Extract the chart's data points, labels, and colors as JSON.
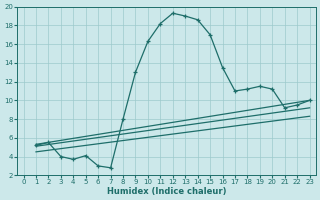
{
  "xlabel": "Humidex (Indice chaleur)",
  "background_color": "#cce8ea",
  "grid_color": "#9ecacc",
  "line_color": "#1e6e6a",
  "xlim": [
    -0.5,
    23.5
  ],
  "ylim": [
    2,
    20
  ],
  "xticks": [
    0,
    1,
    2,
    3,
    4,
    5,
    6,
    7,
    8,
    9,
    10,
    11,
    12,
    13,
    14,
    15,
    16,
    17,
    18,
    19,
    20,
    21,
    22,
    23
  ],
  "yticks": [
    2,
    4,
    6,
    8,
    10,
    12,
    14,
    16,
    18,
    20
  ],
  "line1_x": [
    1,
    2,
    3,
    4,
    5,
    6,
    7,
    8,
    9,
    10,
    11,
    12,
    13,
    14,
    15,
    16,
    17,
    18,
    19,
    20,
    21,
    22,
    23
  ],
  "line1_y": [
    5.2,
    5.5,
    4.0,
    3.7,
    4.1,
    3.0,
    2.8,
    8.0,
    13.0,
    16.3,
    18.2,
    19.3,
    19.0,
    18.6,
    17.0,
    13.5,
    11.0,
    11.2,
    11.5,
    11.2,
    9.2,
    9.5,
    10.0
  ],
  "line2_x": [
    1,
    23
  ],
  "line2_y": [
    5.3,
    10.0
  ],
  "line3_x": [
    1,
    23
  ],
  "line3_y": [
    5.1,
    9.2
  ],
  "line4_x": [
    1,
    23
  ],
  "line4_y": [
    4.5,
    8.3
  ]
}
